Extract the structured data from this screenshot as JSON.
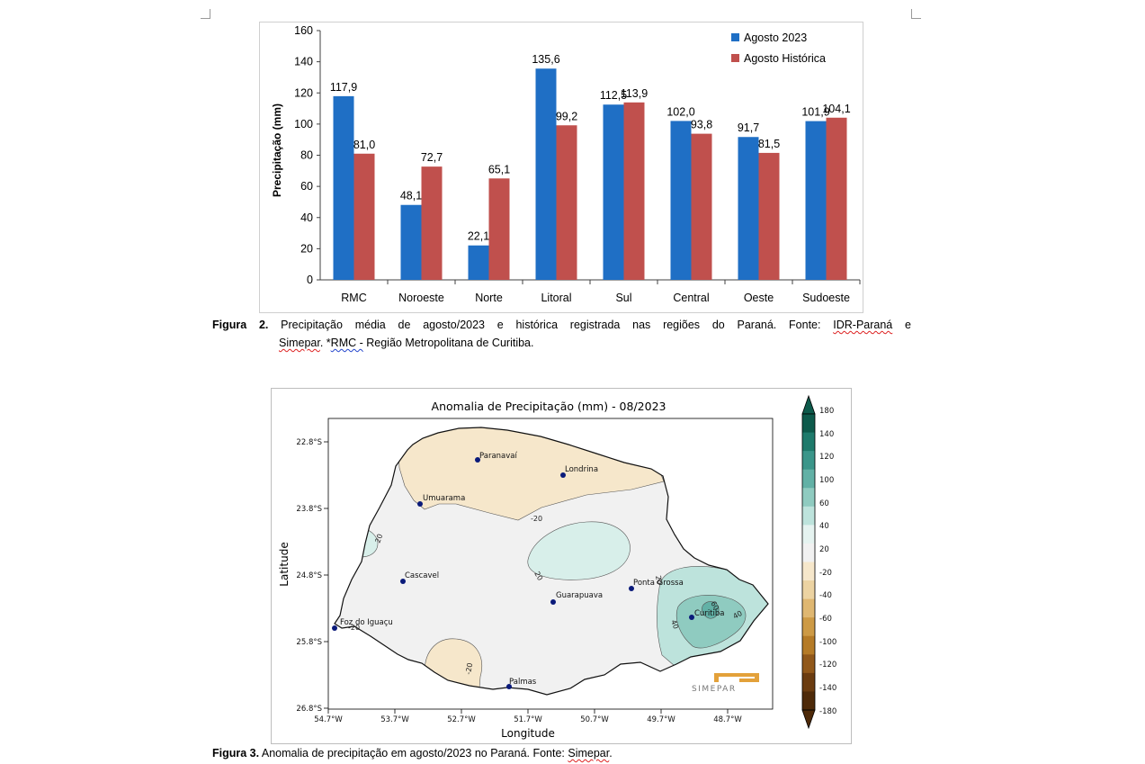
{
  "chart_data": {
    "type": "bar",
    "categories": [
      "RMC",
      "Noroeste",
      "Norte",
      "Litoral",
      "Sul",
      "Central",
      "Oeste",
      "Sudoeste"
    ],
    "series": [
      {
        "name": "Agosto 2023",
        "values": [
          117.9,
          48.1,
          22.1,
          135.6,
          112.5,
          102.0,
          91.7,
          101.9
        ],
        "labels": [
          "117,9",
          "48,1",
          "22,1",
          "135,6",
          "112,5",
          "102,0",
          "91,7",
          "101,9"
        ],
        "color": "#1f6fc5"
      },
      {
        "name": "Agosto Histórica",
        "values": [
          81.0,
          72.7,
          65.1,
          99.2,
          113.9,
          93.8,
          81.5,
          104.1
        ],
        "labels": [
          "81,0",
          "72,7",
          "65,1",
          "99,2",
          "113,9",
          "93,8",
          "81,5",
          "104,1"
        ],
        "color": "#c0504d"
      }
    ],
    "ylabel": "Precipitação (mm)",
    "ylim": [
      0,
      160
    ],
    "yticks": [
      0,
      20,
      40,
      60,
      80,
      100,
      120,
      140,
      160
    ],
    "legend": "top-right",
    "grid": false
  },
  "caption2": {
    "label": "Figura 2.",
    "line1": "Precipitação média de agosto/2023 e histórica registrada nas regiões do Paraná. Fonte:",
    "src1": "IDR-Paraná",
    "conj": "e",
    "src2": "Simepar",
    "mid": ". *",
    "abbr": "RMC -",
    "tail": " Região Metropolitana de Curitiba."
  },
  "map": {
    "title": "Anomalia de Precipitação (mm) - 08/2023",
    "xlabel": "Longitude",
    "ylabel": "Latitude",
    "lat_ticks": [
      "22.8°S",
      "23.8°S",
      "24.8°S",
      "25.8°S",
      "26.8°S"
    ],
    "lon_ticks": [
      "54.7°W",
      "53.7°W",
      "52.7°W",
      "51.7°W",
      "50.7°W",
      "49.7°W",
      "48.7°W"
    ],
    "cities": [
      "Paranavaí",
      "Londrina",
      "Umuarama",
      "Cascavel",
      "Ponta Grossa",
      "Guarapuava",
      "Curitiba",
      "Foz do Iguaçu",
      "Palmas"
    ],
    "contour_labels": [
      "-20",
      "20",
      "20",
      "20",
      "40",
      "60",
      "40",
      "-20",
      "-20"
    ],
    "colorbar_ticks": [
      "180",
      "140",
      "120",
      "100",
      "60",
      "40",
      "20",
      "-20",
      "-40",
      "-60",
      "-100",
      "-120",
      "-140",
      "-180"
    ],
    "colorbar_colors": [
      "#0d5a4b",
      "#1e7a6b",
      "#3b968a",
      "#62b1a6",
      "#8fcbc0",
      "#bde3dc",
      "#e5f3f0",
      "#f1f1f1",
      "#f6e7cb",
      "#ecd3a2",
      "#dfb771",
      "#cd9a45",
      "#b57b27",
      "#91581a",
      "#6b3c10",
      "#4e2a09"
    ],
    "logo_text": "SIMEPAR"
  },
  "caption3": {
    "label": "Figura 3.",
    "text": " Anomalia de precipitação em agosto/2023 no Paraná. Fonte: ",
    "src": "Simepar",
    "end": "."
  }
}
